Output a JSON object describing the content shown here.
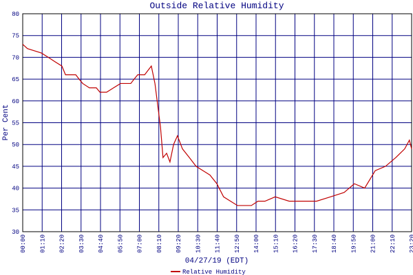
{
  "chart_data": {
    "type": "line",
    "title": "Outside Relative Humidity",
    "x_label": "04/27/19 (EDT)",
    "y_label": "Per Cent",
    "x": [
      0,
      17,
      67,
      92,
      116,
      141,
      154,
      191,
      203,
      216,
      240,
      265,
      278,
      302,
      327,
      352,
      389,
      401,
      414,
      439,
      451,
      463,
      476,
      486,
      496,
      505,
      518,
      530,
      543,
      557,
      575,
      600,
      624,
      649,
      674,
      699,
      723,
      748,
      773,
      798,
      823,
      847,
      872,
      909,
      959,
      1008,
      1058,
      1108,
      1157,
      1194,
      1231,
      1269,
      1306,
      1343,
      1375,
      1392,
      1400
    ],
    "series": [
      {
        "name": "Relative Humidity",
        "color": "#c00000",
        "values": [
          73,
          72,
          71,
          70,
          69,
          68,
          66,
          66,
          65,
          64,
          63,
          63,
          62,
          62,
          63,
          64,
          64,
          65,
          66,
          66,
          67,
          68,
          64,
          59,
          54,
          47,
          48,
          46,
          50,
          52,
          49,
          47,
          45,
          44,
          43,
          41,
          38,
          37,
          36,
          36,
          36,
          37,
          37,
          38,
          37,
          37,
          37,
          38,
          39,
          41,
          40,
          44,
          45,
          47,
          49,
          51,
          49
        ]
      }
    ],
    "xlim": [
      0,
      1400
    ],
    "xticks": [
      {
        "value": 0,
        "label": "00:00"
      },
      {
        "value": 70,
        "label": "01:10"
      },
      {
        "value": 140,
        "label": "02:20"
      },
      {
        "value": 210,
        "label": "03:30"
      },
      {
        "value": 280,
        "label": "04:40"
      },
      {
        "value": 350,
        "label": "05:50"
      },
      {
        "value": 420,
        "label": "07:00"
      },
      {
        "value": 490,
        "label": "08:10"
      },
      {
        "value": 560,
        "label": "09:20"
      },
      {
        "value": 630,
        "label": "10:30"
      },
      {
        "value": 700,
        "label": "11:40"
      },
      {
        "value": 770,
        "label": "12:50"
      },
      {
        "value": 840,
        "label": "14:00"
      },
      {
        "value": 910,
        "label": "15:10"
      },
      {
        "value": 980,
        "label": "16:20"
      },
      {
        "value": 1050,
        "label": "17:30"
      },
      {
        "value": 1120,
        "label": "18:40"
      },
      {
        "value": 1190,
        "label": "19:50"
      },
      {
        "value": 1260,
        "label": "21:00"
      },
      {
        "value": 1330,
        "label": "22:10"
      },
      {
        "value": 1400,
        "label": "23:20"
      }
    ],
    "ylim": [
      30,
      80
    ],
    "yticks": [
      30,
      35,
      40,
      45,
      50,
      55,
      60,
      65,
      70,
      75,
      80
    ],
    "grid": true
  }
}
